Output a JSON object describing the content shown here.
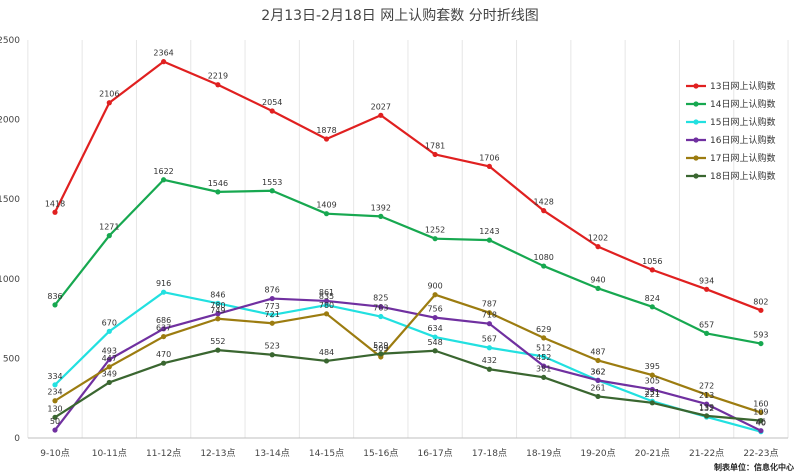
{
  "chart_data": {
    "type": "line",
    "title": "2月13日-2月18日 网上认购套数 分时折线图",
    "categories": [
      "9-10点",
      "10-11点",
      "11-12点",
      "12-13点",
      "13-14点",
      "14-15点",
      "15-16点",
      "16-17点",
      "17-18点",
      "18-19点",
      "19-20点",
      "20-21点",
      "21-22点",
      "22-23点"
    ],
    "ylim": [
      0,
      2500
    ],
    "yticks": [
      0,
      500,
      1000,
      1500,
      2000,
      2500
    ],
    "grid": "vertical",
    "legend_position": "top-right",
    "series": [
      {
        "name": "13日网上认购数",
        "color": "#e02020",
        "values": [
          1418,
          2106,
          2364,
          2219,
          2054,
          1878,
          2027,
          1781,
          1706,
          1428,
          1202,
          1056,
          934,
          802
        ]
      },
      {
        "name": "14日网上认购数",
        "color": "#17a850",
        "values": [
          836,
          1271,
          1622,
          1546,
          1553,
          1409,
          1392,
          1252,
          1243,
          1080,
          940,
          824,
          657,
          593
        ]
      },
      {
        "name": "15日网上认购数",
        "color": "#22e0e0",
        "values": [
          334,
          670,
          916,
          846,
          773,
          835,
          763,
          634,
          567,
          512,
          362,
          231,
          132,
          40
        ]
      },
      {
        "name": "16日网上认购数",
        "color": "#7030a0",
        "values": [
          50,
          493,
          686,
          780,
          876,
          861,
          825,
          756,
          718,
          452,
          362,
          305,
          213,
          46
        ]
      },
      {
        "name": "17日网上认购数",
        "color": "#9c7c10",
        "values": [
          234,
          447,
          637,
          749,
          721,
          780,
          509,
          900,
          787,
          629,
          487,
          395,
          272,
          160
        ]
      },
      {
        "name": "18日网上认购数",
        "color": "#3a6630",
        "values": [
          130,
          349,
          470,
          552,
          523,
          484,
          529,
          548,
          432,
          381,
          261,
          221,
          139,
          109
        ]
      }
    ]
  },
  "footer": "制表单位：信息化中心"
}
